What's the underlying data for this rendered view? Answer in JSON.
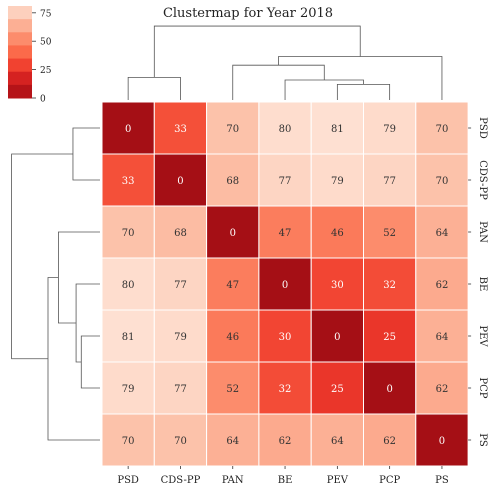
{
  "chart_data": {
    "type": "heatmap",
    "title": "Clustermap for Year 2018",
    "row_labels": [
      "PSD",
      "CDS-PP",
      "PAN",
      "BE",
      "PEV",
      "PCP",
      "PS"
    ],
    "col_labels": [
      "PSD",
      "CDS-PP",
      "PAN",
      "BE",
      "PEV",
      "PCP",
      "PS"
    ],
    "values": [
      [
        0,
        33,
        70,
        80,
        81,
        79,
        70
      ],
      [
        33,
        0,
        68,
        77,
        79,
        77,
        70
      ],
      [
        70,
        68,
        0,
        47,
        46,
        52,
        64
      ],
      [
        80,
        77,
        47,
        0,
        30,
        32,
        62
      ],
      [
        81,
        79,
        46,
        30,
        0,
        25,
        64
      ],
      [
        79,
        77,
        52,
        32,
        25,
        0,
        62
      ],
      [
        70,
        70,
        64,
        62,
        64,
        62,
        0
      ]
    ],
    "colorbar": {
      "ticks": [
        0,
        25,
        50,
        75
      ],
      "range": [
        0,
        81
      ],
      "colors": [
        "#fee0d2",
        "#fcbba1",
        "#fc9272",
        "#fb6a4a",
        "#ef3b2c",
        "#cb181d",
        "#a50f15"
      ]
    }
  }
}
